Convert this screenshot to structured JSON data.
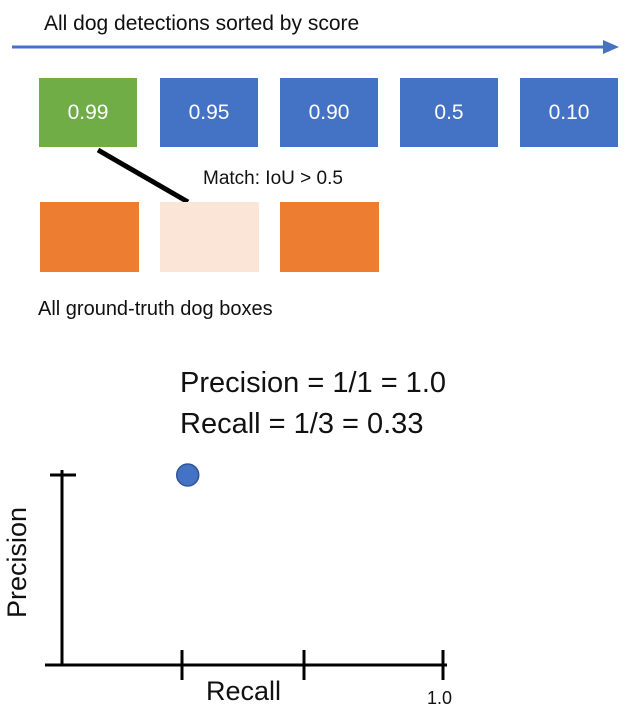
{
  "header": {
    "title": "All dog detections sorted by score"
  },
  "detections": [
    {
      "score": "0.99",
      "color": "#70AD47"
    },
    {
      "score": "0.95",
      "color": "#4472C4"
    },
    {
      "score": "0.90",
      "color": "#4472C4"
    },
    {
      "score": "0.5",
      "color": "#4472C4"
    },
    {
      "score": "0.10",
      "color": "#4472C4"
    }
  ],
  "match": {
    "label": "Match: IoU > 0.5"
  },
  "ground_truth": {
    "label": "All ground-truth dog boxes",
    "boxes": [
      {
        "color": "#ED7D31",
        "matched": false
      },
      {
        "color": "#FBE5D6",
        "matched": true
      },
      {
        "color": "#ED7D31",
        "matched": false
      }
    ]
  },
  "metrics": {
    "precision": "Precision = 1/1 = 1.0",
    "recall": "Recall = 1/3 = 0.33"
  },
  "plot": {
    "xlabel": "Recall",
    "ylabel": "Precision",
    "x_max_label": "1.0",
    "point": {
      "recall": 0.33,
      "precision": 1.0
    },
    "point_color": "#4472C4"
  },
  "colors": {
    "arrow": "#4472C4"
  }
}
